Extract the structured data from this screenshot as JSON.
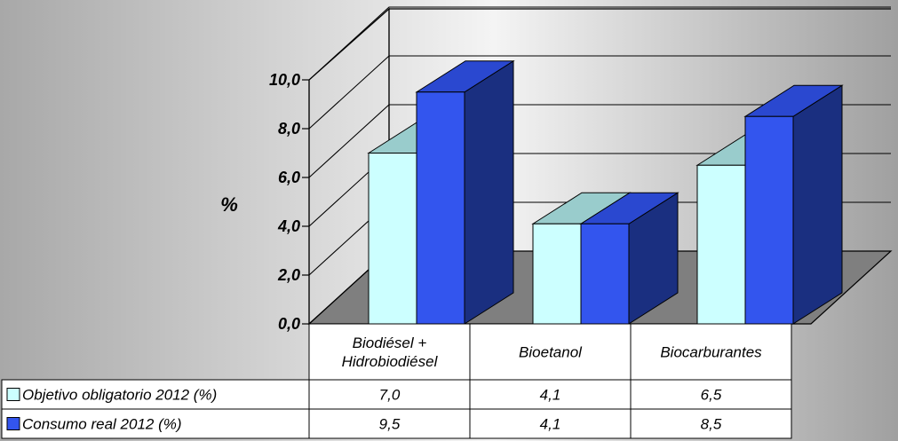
{
  "chart_data": {
    "type": "bar",
    "ylabel": "%",
    "ylim": [
      0,
      10
    ],
    "yticks": [
      "0,0",
      "2,0",
      "4,0",
      "6,0",
      "8,0",
      "10,0"
    ],
    "categories": [
      [
        "Biodiésel +",
        "Hidrobiodiésel"
      ],
      [
        "Bioetanol"
      ],
      [
        "Biocarburantes"
      ]
    ],
    "series": [
      {
        "name": "Objetivo obligatorio 2012 (%)",
        "values": [
          7.0,
          4.1,
          6.5
        ],
        "labels": [
          "7,0",
          "4,1",
          "6,5"
        ],
        "front_color": "#ccffff",
        "top_color": "#99cccc",
        "side_color": "#77aaaa"
      },
      {
        "name": "Consumo real 2012 (%)",
        "values": [
          9.5,
          4.1,
          8.5
        ],
        "labels": [
          "9,5",
          "4,1",
          "8,5"
        ],
        "front_color": "#3355ee",
        "top_color": "#2a48d0",
        "side_color": "#1a2f80"
      }
    ],
    "grid": true,
    "legend": "data-table"
  }
}
